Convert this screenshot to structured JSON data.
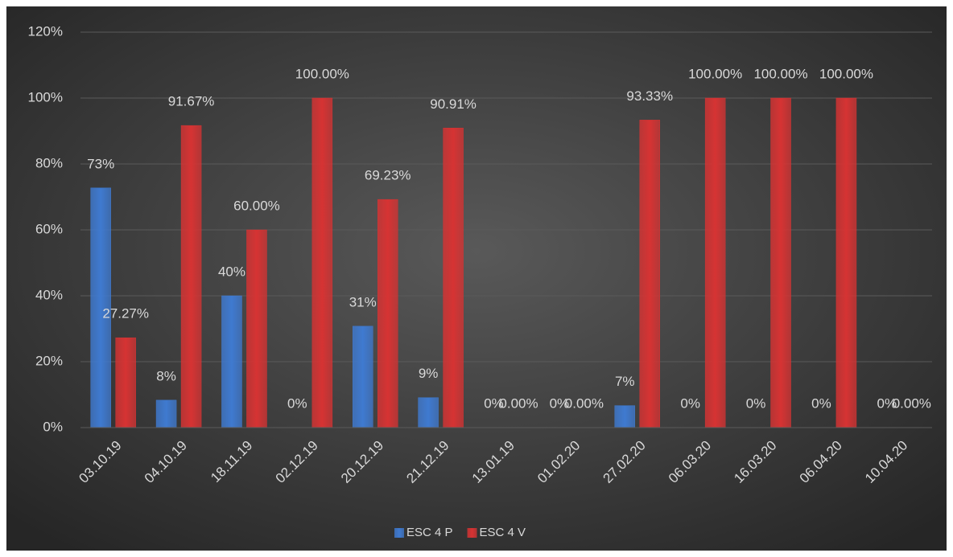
{
  "chart_data": {
    "type": "bar",
    "categories": [
      "03.10.19",
      "04.10.19",
      "18.11.19",
      "02.12.19",
      "20.12.19",
      "21.12.19",
      "13.01.19",
      "01.02.20",
      "27.02.20",
      "06.03.20",
      "16.03.20",
      "06.04.20",
      "10.04.20"
    ],
    "series": [
      {
        "name": "ESC 4 P",
        "color": "#3f7ad0",
        "values": [
          72.73,
          8.33,
          40,
          0,
          30.77,
          9.09,
          0,
          0,
          6.67,
          0,
          0,
          0,
          0
        ],
        "value_labels": [
          "73%",
          "8%",
          "40%",
          "0%",
          "31%",
          "9%",
          "0%",
          "0%",
          "7%",
          "0%",
          "0%",
          "0%",
          "0%"
        ]
      },
      {
        "name": "ESC 4 V",
        "color": "#d63333",
        "values": [
          27.27,
          91.67,
          60,
          100,
          69.23,
          90.91,
          0,
          0,
          93.33,
          100,
          100,
          100,
          0
        ],
        "value_labels": [
          "27.27%",
          "91.67%",
          "60.00%",
          "100.00%",
          "69.23%",
          "90.91%",
          "0.00%",
          "0.00%",
          "93.33%",
          "100.00%",
          "100.00%",
          "100.00%",
          "0.00%"
        ]
      }
    ],
    "ylim": [
      0,
      120
    ],
    "yticks": [
      {
        "value": 0,
        "label": "0%"
      },
      {
        "value": 20,
        "label": "20%"
      },
      {
        "value": 40,
        "label": "40%"
      },
      {
        "value": 60,
        "label": "60%"
      },
      {
        "value": 80,
        "label": "80%"
      },
      {
        "value": 100,
        "label": "100%"
      },
      {
        "value": 120,
        "label": "120%"
      }
    ],
    "grid": true,
    "legend": "bottom"
  }
}
